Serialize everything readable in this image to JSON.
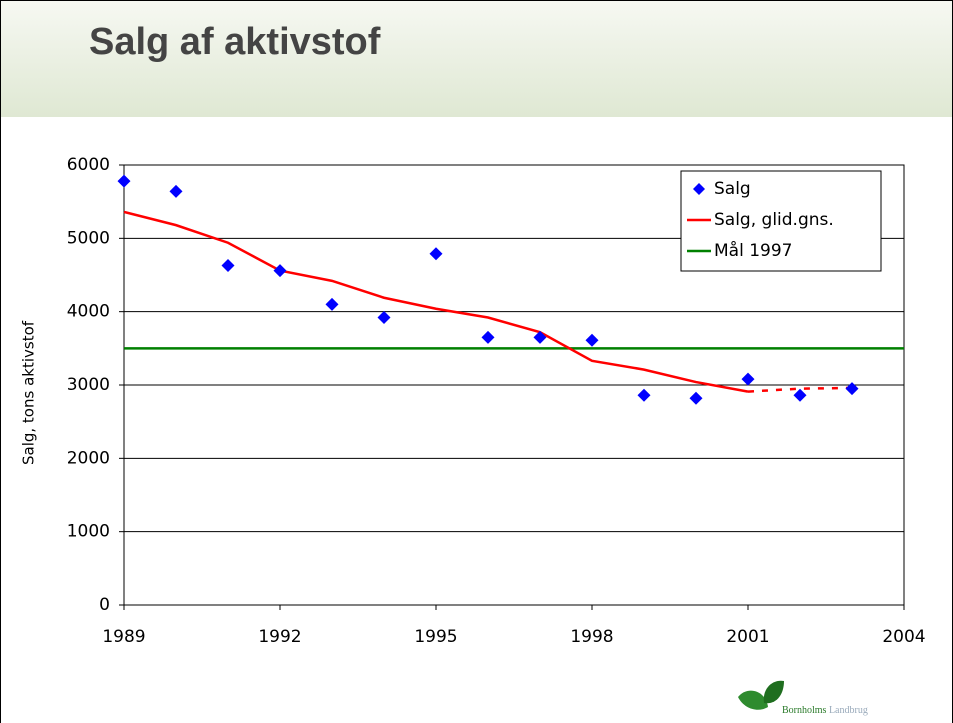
{
  "title": "Salg af aktivstof",
  "logo": {
    "name": "Bornholms",
    "suffix": "Landbrug"
  },
  "chart_data": {
    "type": "scatter-line",
    "y_label": "Salg, tons aktivstof",
    "x": [
      1989,
      1990,
      1991,
      1992,
      1993,
      1994,
      1995,
      1996,
      1997,
      1998,
      1999,
      2000,
      2001,
      2002,
      2003
    ],
    "series": [
      {
        "name": "Salg",
        "type": "scatter",
        "color": "#0000ff",
        "values": [
          5780,
          5640,
          4630,
          4560,
          4100,
          3920,
          4790,
          3650,
          3650,
          3610,
          2860,
          2820,
          3080,
          2860,
          2950
        ]
      },
      {
        "name": "Salg, glid.gns.",
        "type": "line",
        "color": "#ff0000",
        "dashed_from": 2001,
        "values": [
          5360,
          5180,
          4940,
          4560,
          4420,
          4190,
          4040,
          3920,
          3720,
          3330,
          3210,
          3040,
          2910,
          2950,
          2960
        ]
      },
      {
        "name": "Mål 1997",
        "type": "hline",
        "color": "#008000",
        "value": 3500
      }
    ],
    "xlim": [
      1989,
      2004
    ],
    "xticks": [
      1989,
      1992,
      1995,
      1998,
      2001,
      2004
    ],
    "ylim": [
      0,
      6000
    ],
    "yticks": [
      0,
      1000,
      2000,
      3000,
      4000,
      5000,
      6000
    ],
    "grid": true,
    "legend": "top-right"
  }
}
